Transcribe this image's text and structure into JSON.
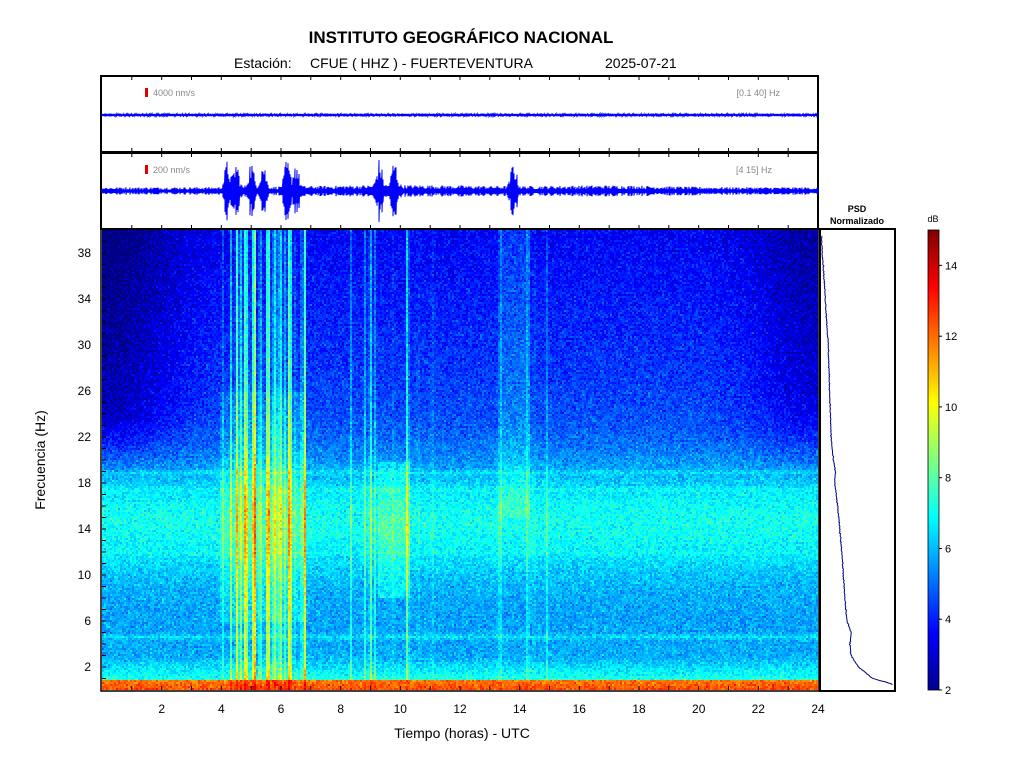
{
  "header": {
    "title": "INSTITUTO GEOGRÁFICO NACIONAL",
    "station_prefix": "Estación:",
    "station": "CFUE ( HHZ ) - FUERTEVENTURA",
    "date": "2025-07-21"
  },
  "colors": {
    "trace": "#0000ff",
    "scale_marker": "#e00000",
    "psd_line": "#00008b"
  },
  "chart_data": [
    {
      "type": "line",
      "name": "seismogram-broadband",
      "scale_label": "4000 nm/s",
      "filter_label": "[0.1 40] Hz",
      "x_range_hours": [
        0,
        24
      ]
    },
    {
      "type": "line",
      "name": "seismogram-filtered",
      "scale_label": "200 nm/s",
      "filter_label": "[4 15] Hz",
      "x_range_hours": [
        0,
        24
      ],
      "bursts_hours": [
        4.2,
        4.5,
        5.0,
        5.4,
        6.2,
        6.5,
        9.3,
        9.8,
        13.8
      ]
    },
    {
      "type": "heatmap",
      "name": "spectrogram",
      "xlabel": "Tiempo (horas) - UTC",
      "ylabel": "Frecuencia  (Hz)",
      "xlim": [
        0,
        24
      ],
      "ylim": [
        0,
        40
      ],
      "x_ticks": [
        2,
        4,
        6,
        8,
        10,
        12,
        14,
        16,
        18,
        20,
        22,
        24
      ],
      "y_ticks": [
        2,
        6,
        10,
        14,
        18,
        22,
        26,
        30,
        34,
        38
      ]
    },
    {
      "type": "line",
      "name": "psd",
      "title_line1": "PSD",
      "title_line2": "Normalizado",
      "freq_hz": [
        39,
        38,
        36,
        34,
        32,
        30,
        28,
        26,
        24,
        22,
        20,
        19,
        18,
        16,
        14,
        12,
        10,
        8,
        6,
        5,
        4,
        3,
        2,
        1,
        0.5
      ],
      "value": [
        0.01,
        0.02,
        0.04,
        0.06,
        0.08,
        0.1,
        0.11,
        0.12,
        0.13,
        0.14,
        0.17,
        0.2,
        0.19,
        0.23,
        0.26,
        0.29,
        0.31,
        0.33,
        0.36,
        0.42,
        0.4,
        0.42,
        0.52,
        0.72,
        1.0
      ]
    },
    {
      "type": "heatmap",
      "name": "colorbar",
      "unit_label": "dB",
      "range": [
        2,
        15
      ],
      "ticks": [
        2,
        4,
        6,
        8,
        10,
        12,
        14
      ]
    }
  ]
}
